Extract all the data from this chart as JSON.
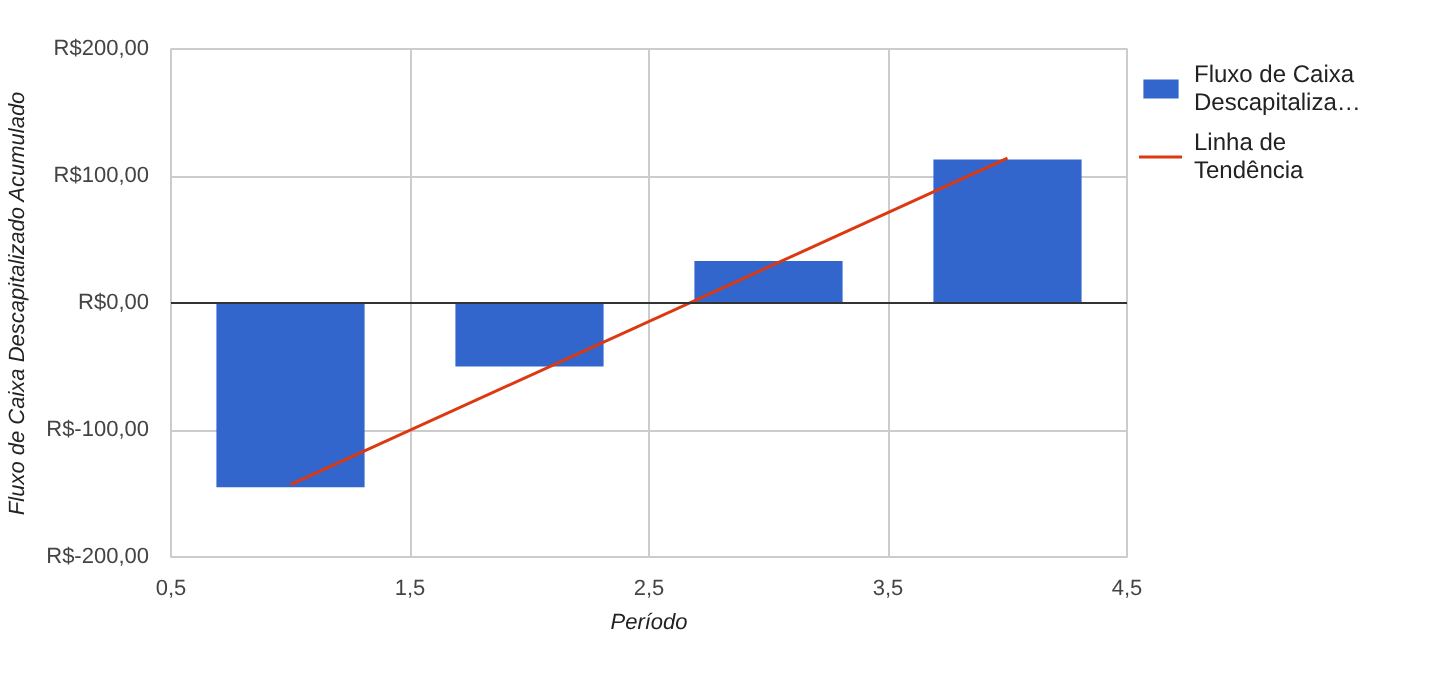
{
  "chart_data": {
    "type": "bar",
    "xlabel": "Período",
    "ylabel": "Fluxo de Caixa Descapitalizado Acumulado",
    "x": [
      1,
      2,
      3,
      4
    ],
    "series": [
      {
        "name": "Fluxo de Caixa Descapitaliza…",
        "color": "#3366cc",
        "values": [
          -145,
          -50,
          33,
          113
        ]
      },
      {
        "name": "Linha de Tendência",
        "type": "line",
        "color": "#dc3912",
        "x": [
          1,
          4
        ],
        "values": [
          -143,
          114
        ]
      }
    ],
    "xlim": [
      0.5,
      4.5
    ],
    "xticks": [
      {
        "value": 0.5,
        "label": "0,5"
      },
      {
        "value": 1.5,
        "label": "1,5"
      },
      {
        "value": 2.5,
        "label": "2,5"
      },
      {
        "value": 3.5,
        "label": "3,5"
      },
      {
        "value": 4.5,
        "label": "4,5"
      }
    ],
    "ylim": [
      -200,
      200
    ],
    "yticks": [
      {
        "value": -200,
        "label": "R$-200,00"
      },
      {
        "value": -100,
        "label": "R$-100,00"
      },
      {
        "value": 0,
        "label": "R$0,00"
      },
      {
        "value": 100,
        "label": "R$100,00"
      },
      {
        "value": 200,
        "label": "R$200,00"
      }
    ],
    "grid": true,
    "legend": "right"
  }
}
